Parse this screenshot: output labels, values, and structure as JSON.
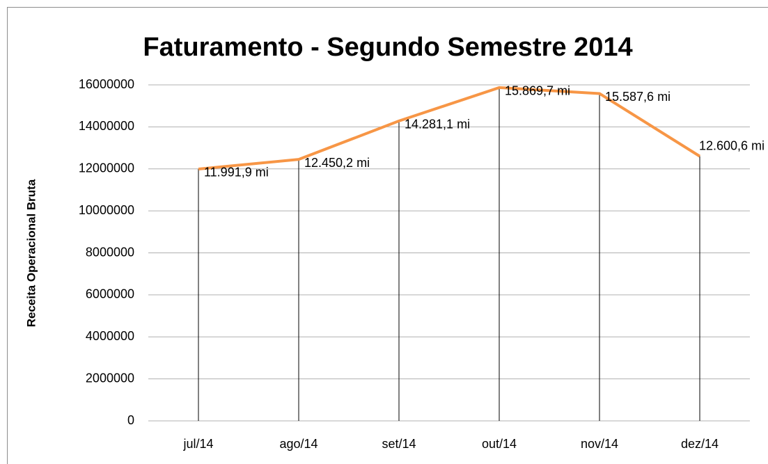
{
  "chart_data": {
    "type": "line",
    "title": "Faturamento  - Segundo Semestre 2014",
    "y_label": "Receita Operacional Bruta",
    "categories": [
      "jul/14",
      "ago/14",
      "set/14",
      "out/14",
      "nov/14",
      "dez/14"
    ],
    "values": [
      11991900,
      12450200,
      14281100,
      15869700,
      15587600,
      12600600
    ],
    "value_labels": [
      "11.991,9 mi",
      "12.450,2 mi",
      "14.281,1 mi",
      "15.869,7 mi",
      "15.587,6 mi",
      "12.600,6 mi"
    ],
    "color": "#f79646",
    "drop_lines": true,
    "ylim": [
      0,
      16000000
    ],
    "yticks": [
      0,
      2000000,
      4000000,
      6000000,
      8000000,
      10000000,
      12000000,
      14000000,
      16000000
    ],
    "grid": true
  }
}
